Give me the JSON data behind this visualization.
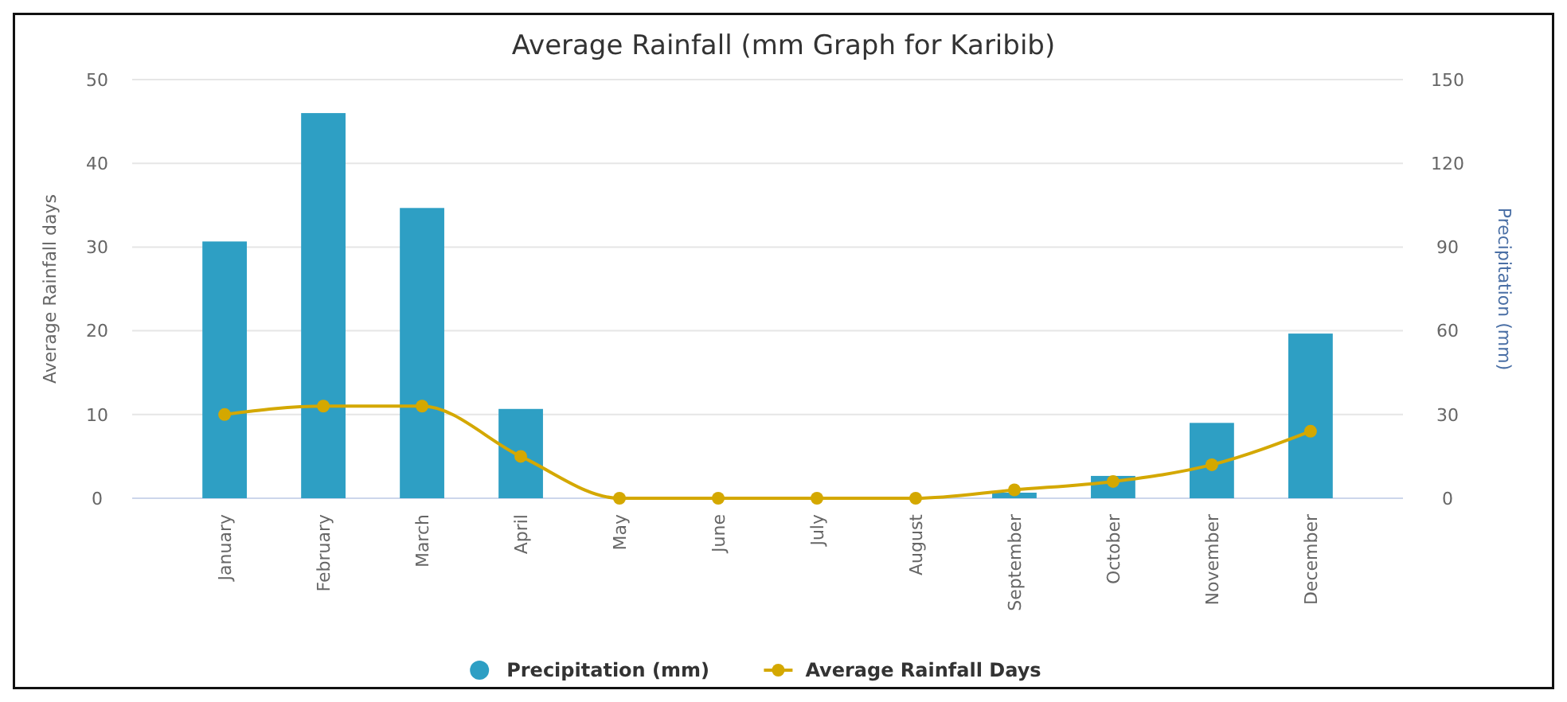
{
  "chart_data": {
    "type": "bar",
    "title": "Average Rainfall (mm Graph for Karibib)",
    "ylabel": "Average Rainfall days",
    "y2label": "Precipitation (mm)",
    "categories": [
      "January",
      "February",
      "March",
      "April",
      "May",
      "June",
      "July",
      "August",
      "September",
      "October",
      "November",
      "December"
    ],
    "series": [
      {
        "name": "Precipitation (mm)",
        "axis": "y2",
        "color": "#2e9fc4",
        "values": [
          92,
          138,
          104,
          32,
          0,
          0,
          0,
          0,
          2,
          8,
          27,
          59
        ]
      },
      {
        "name": "Average Rainfall Days",
        "type": "line",
        "color": "#d4a800",
        "marker": "circle",
        "values": [
          10,
          11,
          11,
          5,
          0,
          0,
          0,
          0,
          1,
          2,
          4,
          8
        ]
      }
    ],
    "ylim": [
      0,
      50
    ],
    "yticks": [
      0,
      10,
      20,
      30,
      40,
      50
    ],
    "y2lim": [
      0,
      150
    ],
    "y2ticks": [
      0,
      30,
      60,
      90,
      120,
      150
    ],
    "grid": "y",
    "legend": "bottom"
  }
}
